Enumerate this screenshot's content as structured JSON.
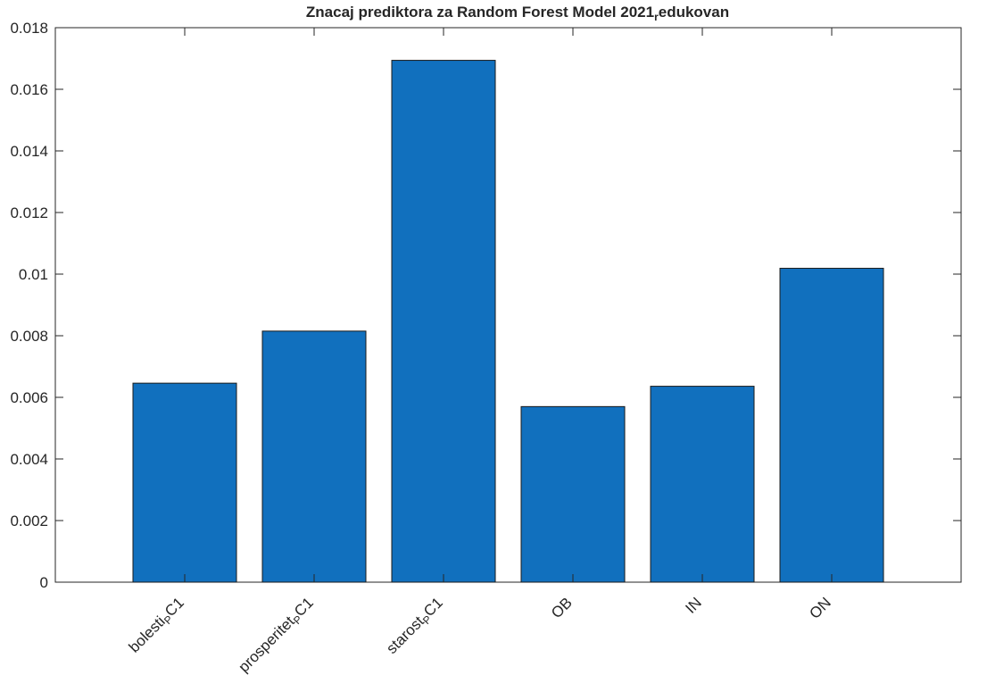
{
  "chart_data": {
    "type": "bar",
    "title": "Znacaj prediktora za Random Forest Model 2021",
    "title_subscript": "r",
    "title_suffix": "edukovan",
    "categories": [
      {
        "base": "bolesti",
        "sub": "P",
        "suffix": "C1"
      },
      {
        "base": "prosperitet",
        "sub": "P",
        "suffix": "C1"
      },
      {
        "base": "starost",
        "sub": "P",
        "suffix": "C1"
      },
      {
        "base": "OB",
        "sub": "",
        "suffix": ""
      },
      {
        "base": "IN",
        "sub": "",
        "suffix": ""
      },
      {
        "base": "ON",
        "sub": "",
        "suffix": ""
      }
    ],
    "values": [
      0.00646,
      0.00815,
      0.01694,
      0.0057,
      0.00636,
      0.01019
    ],
    "ylim": [
      0,
      0.018
    ],
    "xlim": [
      0,
      7
    ],
    "yticks": [
      "0",
      "0.002",
      "0.004",
      "0.006",
      "0.008",
      "0.01",
      "0.012",
      "0.014",
      "0.016",
      "0.018"
    ],
    "ytick_values": [
      0,
      0.002,
      0.004,
      0.006,
      0.008,
      0.01,
      0.012,
      0.014,
      0.016,
      0.018
    ],
    "xlabel": "",
    "ylabel": "",
    "grid": false,
    "bar_color": "#1170BE",
    "edge_color": "#1A1A1A",
    "axis_color": "#262626"
  }
}
